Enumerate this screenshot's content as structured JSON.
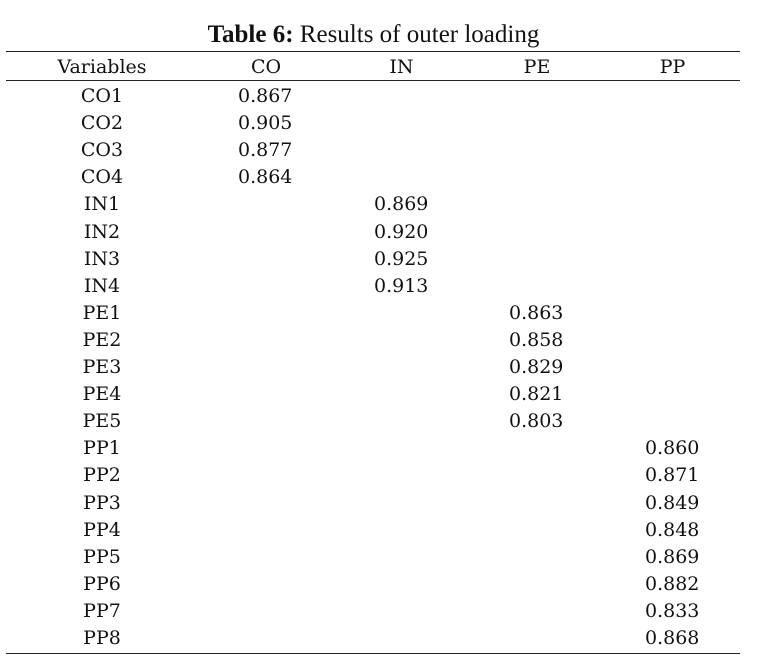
{
  "caption": {
    "label": "Table 6:",
    "text": " Results of outer loading"
  },
  "columns": [
    "Variables",
    "CO",
    "IN",
    "PE",
    "PP"
  ],
  "rows": [
    {
      "name": "CO1",
      "col": 1,
      "value": "0.867"
    },
    {
      "name": "CO2",
      "col": 1,
      "value": "0.905"
    },
    {
      "name": "CO3",
      "col": 1,
      "value": "0.877"
    },
    {
      "name": "CO4",
      "col": 1,
      "value": "0.864"
    },
    {
      "name": "IN1",
      "col": 2,
      "value": "0.869"
    },
    {
      "name": "IN2",
      "col": 2,
      "value": "0.920"
    },
    {
      "name": "IN3",
      "col": 2,
      "value": "0.925"
    },
    {
      "name": "IN4",
      "col": 2,
      "value": "0.913"
    },
    {
      "name": "PE1",
      "col": 3,
      "value": "0.863"
    },
    {
      "name": "PE2",
      "col": 3,
      "value": "0.858"
    },
    {
      "name": "PE3",
      "col": 3,
      "value": "0.829"
    },
    {
      "name": "PE4",
      "col": 3,
      "value": "0.821"
    },
    {
      "name": "PE5",
      "col": 3,
      "value": "0.803"
    },
    {
      "name": "PP1",
      "col": 4,
      "value": "0.860"
    },
    {
      "name": "PP2",
      "col": 4,
      "value": "0.871"
    },
    {
      "name": "PP3",
      "col": 4,
      "value": "0.849"
    },
    {
      "name": "PP4",
      "col": 4,
      "value": "0.848"
    },
    {
      "name": "PP5",
      "col": 4,
      "value": "0.869"
    },
    {
      "name": "PP6",
      "col": 4,
      "value": "0.882"
    },
    {
      "name": "PP7",
      "col": 4,
      "value": "0.833"
    },
    {
      "name": "PP8",
      "col": 4,
      "value": "0.868"
    }
  ]
}
